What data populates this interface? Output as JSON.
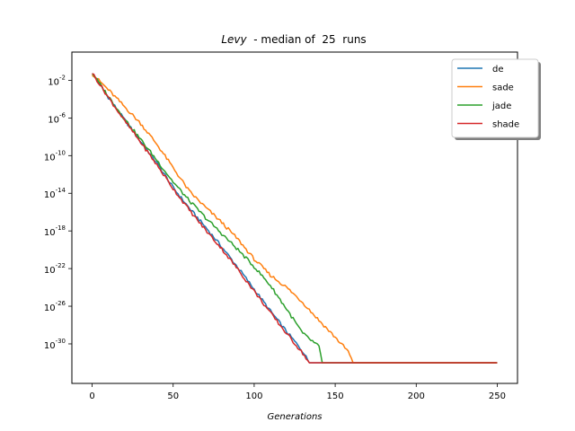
{
  "chart_data": {
    "type": "line",
    "title": {
      "func": "Levy",
      "rest": "  - median of  25  runs"
    },
    "xlabel": "Generations",
    "ylabel": "",
    "xlim": [
      -12.5,
      262.5
    ],
    "ylim_log10": [
      -34.2,
      1.0
    ],
    "yscale": "log",
    "grid": false,
    "legend_position": "top-right",
    "x_ticks": [
      0,
      50,
      100,
      150,
      200,
      250
    ],
    "y_ticks": [
      {
        "exp": -2,
        "label": "10",
        "sup": "-2"
      },
      {
        "exp": -6,
        "label": "10",
        "sup": "-6"
      },
      {
        "exp": -10,
        "label": "10",
        "sup": "-10"
      },
      {
        "exp": -14,
        "label": "10",
        "sup": "-14"
      },
      {
        "exp": -18,
        "label": "10",
        "sup": "-18"
      },
      {
        "exp": -22,
        "label": "10",
        "sup": "-22"
      },
      {
        "exp": -26,
        "label": "10",
        "sup": "-26"
      },
      {
        "exp": -30,
        "label": "10",
        "sup": "-30"
      }
    ],
    "series": [
      {
        "name": "de",
        "color": "#1f77b4",
        "x": [
          0,
          10,
          20,
          30,
          40,
          50,
          60,
          70,
          80,
          90,
          100,
          110,
          120,
          130,
          134,
          250
        ],
        "log10_y": [
          -1.2,
          -3.8,
          -6.2,
          -8.5,
          -10.8,
          -13.4,
          -15.6,
          -17.6,
          -19.7,
          -21.9,
          -24.2,
          -26.5,
          -28.7,
          -30.8,
          -32.0,
          -32.0
        ]
      },
      {
        "name": "sade",
        "color": "#ff7f0e",
        "x": [
          0,
          10,
          20,
          30,
          40,
          50,
          60,
          70,
          80,
          90,
          100,
          110,
          120,
          130,
          140,
          150,
          158,
          161,
          250
        ],
        "log10_y": [
          -1.3,
          -3.0,
          -4.8,
          -6.6,
          -8.8,
          -11.3,
          -13.8,
          -15.5,
          -17.1,
          -18.9,
          -21.0,
          -22.7,
          -24.0,
          -25.6,
          -27.5,
          -29.3,
          -30.8,
          -32.0,
          -32.0
        ]
      },
      {
        "name": "jade",
        "color": "#2ca02c",
        "x": [
          0,
          10,
          20,
          30,
          40,
          50,
          60,
          70,
          80,
          90,
          100,
          110,
          120,
          130,
          140,
          142,
          250
        ],
        "log10_y": [
          -1.2,
          -3.7,
          -6.1,
          -8.3,
          -10.5,
          -12.8,
          -14.8,
          -16.6,
          -18.3,
          -20.0,
          -21.8,
          -23.8,
          -26.3,
          -28.9,
          -30.3,
          -32.0,
          -32.0
        ]
      },
      {
        "name": "shade",
        "color": "#d62728",
        "x": [
          0,
          10,
          20,
          30,
          40,
          50,
          60,
          70,
          80,
          90,
          100,
          110,
          120,
          130,
          134,
          250
        ],
        "log10_y": [
          -1.2,
          -3.8,
          -6.3,
          -8.6,
          -11.0,
          -13.5,
          -15.8,
          -17.9,
          -19.9,
          -22.1,
          -24.4,
          -26.7,
          -28.9,
          -31.0,
          -32.0,
          -32.0
        ]
      }
    ]
  }
}
